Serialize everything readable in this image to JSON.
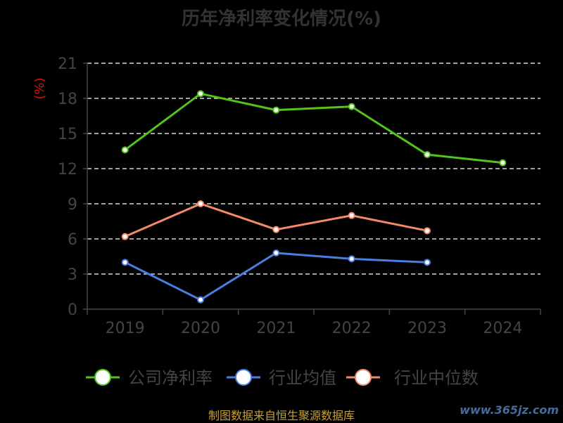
{
  "chart_data": {
    "type": "line",
    "title": "历年净利率变化情况(%)",
    "ylabel": "(%)",
    "categories": [
      "2019",
      "2020",
      "2021",
      "2022",
      "2023",
      "2024"
    ],
    "ylim": [
      0,
      21
    ],
    "yticks": [
      0,
      3,
      6,
      9,
      12,
      15,
      18,
      21
    ],
    "grid": true,
    "legend_position": "bottom",
    "series": [
      {
        "name": "公司净利率",
        "color": "#52c41a",
        "values": [
          13.6,
          18.4,
          17.0,
          17.3,
          13.2,
          12.5
        ]
      },
      {
        "name": "行业均值",
        "color": "#4a7ee0",
        "values": [
          4.0,
          0.8,
          4.8,
          4.3,
          4.0,
          null
        ]
      },
      {
        "name": "行业中位数",
        "color": "#f5896a",
        "values": [
          6.2,
          9.0,
          6.8,
          8.0,
          6.7,
          null
        ]
      }
    ]
  },
  "footer": {
    "source": "制图数据来自恒生聚源数据库",
    "watermark": "www.365jz.com"
  }
}
